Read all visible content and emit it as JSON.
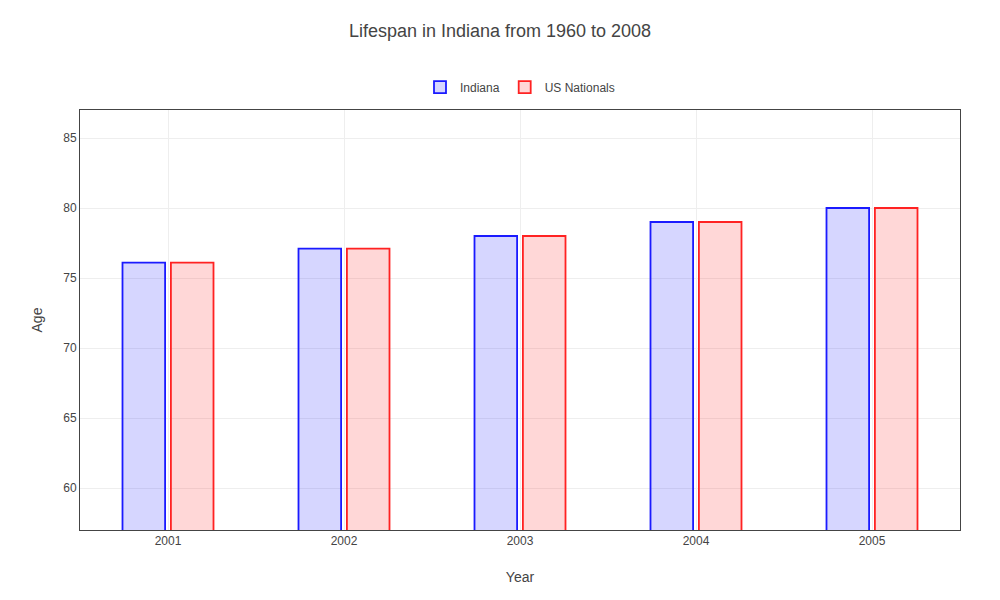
{
  "chart_data": {
    "type": "bar",
    "title": "Lifespan in Indiana from 1960 to 2008",
    "x_label": "Year",
    "y_label": "Age",
    "categories": [
      "2001",
      "2002",
      "2003",
      "2004",
      "2005"
    ],
    "series": [
      {
        "name": "Indiana",
        "color": "#1a1aff",
        "values": [
          76.1,
          77.1,
          78.0,
          79.0,
          80.0
        ]
      },
      {
        "name": "US Nationals",
        "color": "#ff2222",
        "values": [
          76.1,
          77.1,
          78.0,
          79.0,
          80.0
        ]
      }
    ],
    "ylim": [
      57,
      87
    ],
    "yticks": [
      60,
      65,
      70,
      75,
      80,
      85
    ],
    "grid": true,
    "legend": "top"
  }
}
